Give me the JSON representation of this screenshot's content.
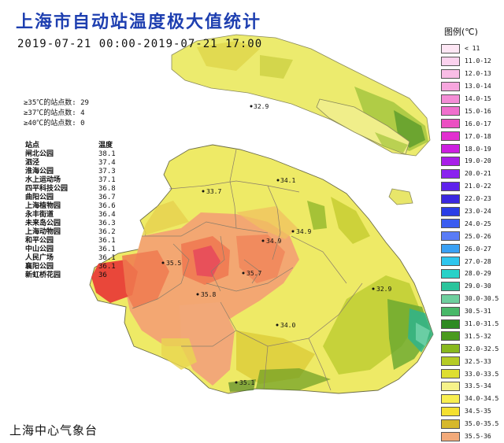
{
  "title": "上海市自动站温度极大值统计",
  "time_range": "2019-07-21 00:00-2019-07-21 17:00",
  "counts": [
    {
      "label": "≥35℃的站点数:",
      "value": "29"
    },
    {
      "label": "≥37℃的站点数:",
      "value": "4"
    },
    {
      "label": "≥40℃的站点数:",
      "value": "0"
    }
  ],
  "stations_header": {
    "name": "站点",
    "temp": "温度"
  },
  "stations": [
    {
      "name": "闸北公园",
      "temp": "38.1"
    },
    {
      "name": "泗泾",
      "temp": "37.4"
    },
    {
      "name": "淮海公园",
      "temp": "37.3"
    },
    {
      "name": "水上运动场",
      "temp": "37.1"
    },
    {
      "name": "四平科技公园",
      "temp": "36.8"
    },
    {
      "name": "曲阳公园",
      "temp": "36.7"
    },
    {
      "name": "上海植物园",
      "temp": "36.6"
    },
    {
      "name": "永丰街道",
      "temp": "36.4"
    },
    {
      "name": "未来岛公园",
      "temp": "36.3"
    },
    {
      "name": "上海动物园",
      "temp": "36.2"
    },
    {
      "name": "和平公园",
      "temp": "36.1"
    },
    {
      "name": "中山公园",
      "temp": "36.1"
    },
    {
      "name": "人民广场",
      "temp": "36.1"
    },
    {
      "name": "襄阳公园",
      "temp": "36.1"
    },
    {
      "name": "新虹桥花园",
      "temp": "36"
    }
  ],
  "map_labels": [
    "32.9",
    "34.1",
    "33.7",
    "34.9",
    "34.9",
    "35.5",
    "35.7",
    "35.8",
    "34.0",
    "32.9",
    "35.1"
  ],
  "legend": {
    "title": "图例(℃)",
    "items": [
      {
        "label": "< 11",
        "color": "#fde6f4"
      },
      {
        "label": "11.0-12",
        "color": "#fbd2ee"
      },
      {
        "label": "12.0-13",
        "color": "#f9bde6"
      },
      {
        "label": "13.0-14",
        "color": "#f7a6de"
      },
      {
        "label": "14.0-15",
        "color": "#f48dd6"
      },
      {
        "label": "15.0-16",
        "color": "#f06fcd"
      },
      {
        "label": "16.0-17",
        "color": "#ec4fc2"
      },
      {
        "label": "17.0-18",
        "color": "#e22fd0"
      },
      {
        "label": "18.0-19",
        "color": "#cc1fe0"
      },
      {
        "label": "19.0-20",
        "color": "#a81ee8"
      },
      {
        "label": "20.0-21",
        "color": "#8a22f0"
      },
      {
        "label": "21.0-22",
        "color": "#5e22ec"
      },
      {
        "label": "22.0-23",
        "color": "#3a28e0"
      },
      {
        "label": "23.0-24",
        "color": "#2a3ee6"
      },
      {
        "label": "24.0-25",
        "color": "#3a5cf0"
      },
      {
        "label": "25.0-26",
        "color": "#5a7cf6"
      },
      {
        "label": "26.0-27",
        "color": "#3aa0f4"
      },
      {
        "label": "27.0-28",
        "color": "#2ec6ee"
      },
      {
        "label": "28.0-29",
        "color": "#28d2c8"
      },
      {
        "label": "29.0-30",
        "color": "#2ac49c"
      },
      {
        "label": "30.0-30.5",
        "color": "#6ecf9e"
      },
      {
        "label": "30.5-31",
        "color": "#48b868"
      },
      {
        "label": "31.0-31.5",
        "color": "#2e8a22"
      },
      {
        "label": "31.5-32",
        "color": "#4a9a1e"
      },
      {
        "label": "32.0-32.5",
        "color": "#88b81e"
      },
      {
        "label": "32.5-33",
        "color": "#b6cc24"
      },
      {
        "label": "33.0-33.5",
        "color": "#dede30"
      },
      {
        "label": "33.5-34",
        "color": "#f6f28a"
      },
      {
        "label": "34.0-34.5",
        "color": "#f8ee50"
      },
      {
        "label": "34.5-35",
        "color": "#f4e030"
      },
      {
        "label": "35.0-35.5",
        "color": "#d6b82c"
      },
      {
        "label": "35.5-36",
        "color": "#f2aa7a"
      }
    ]
  },
  "footer": "上海中心气象台"
}
